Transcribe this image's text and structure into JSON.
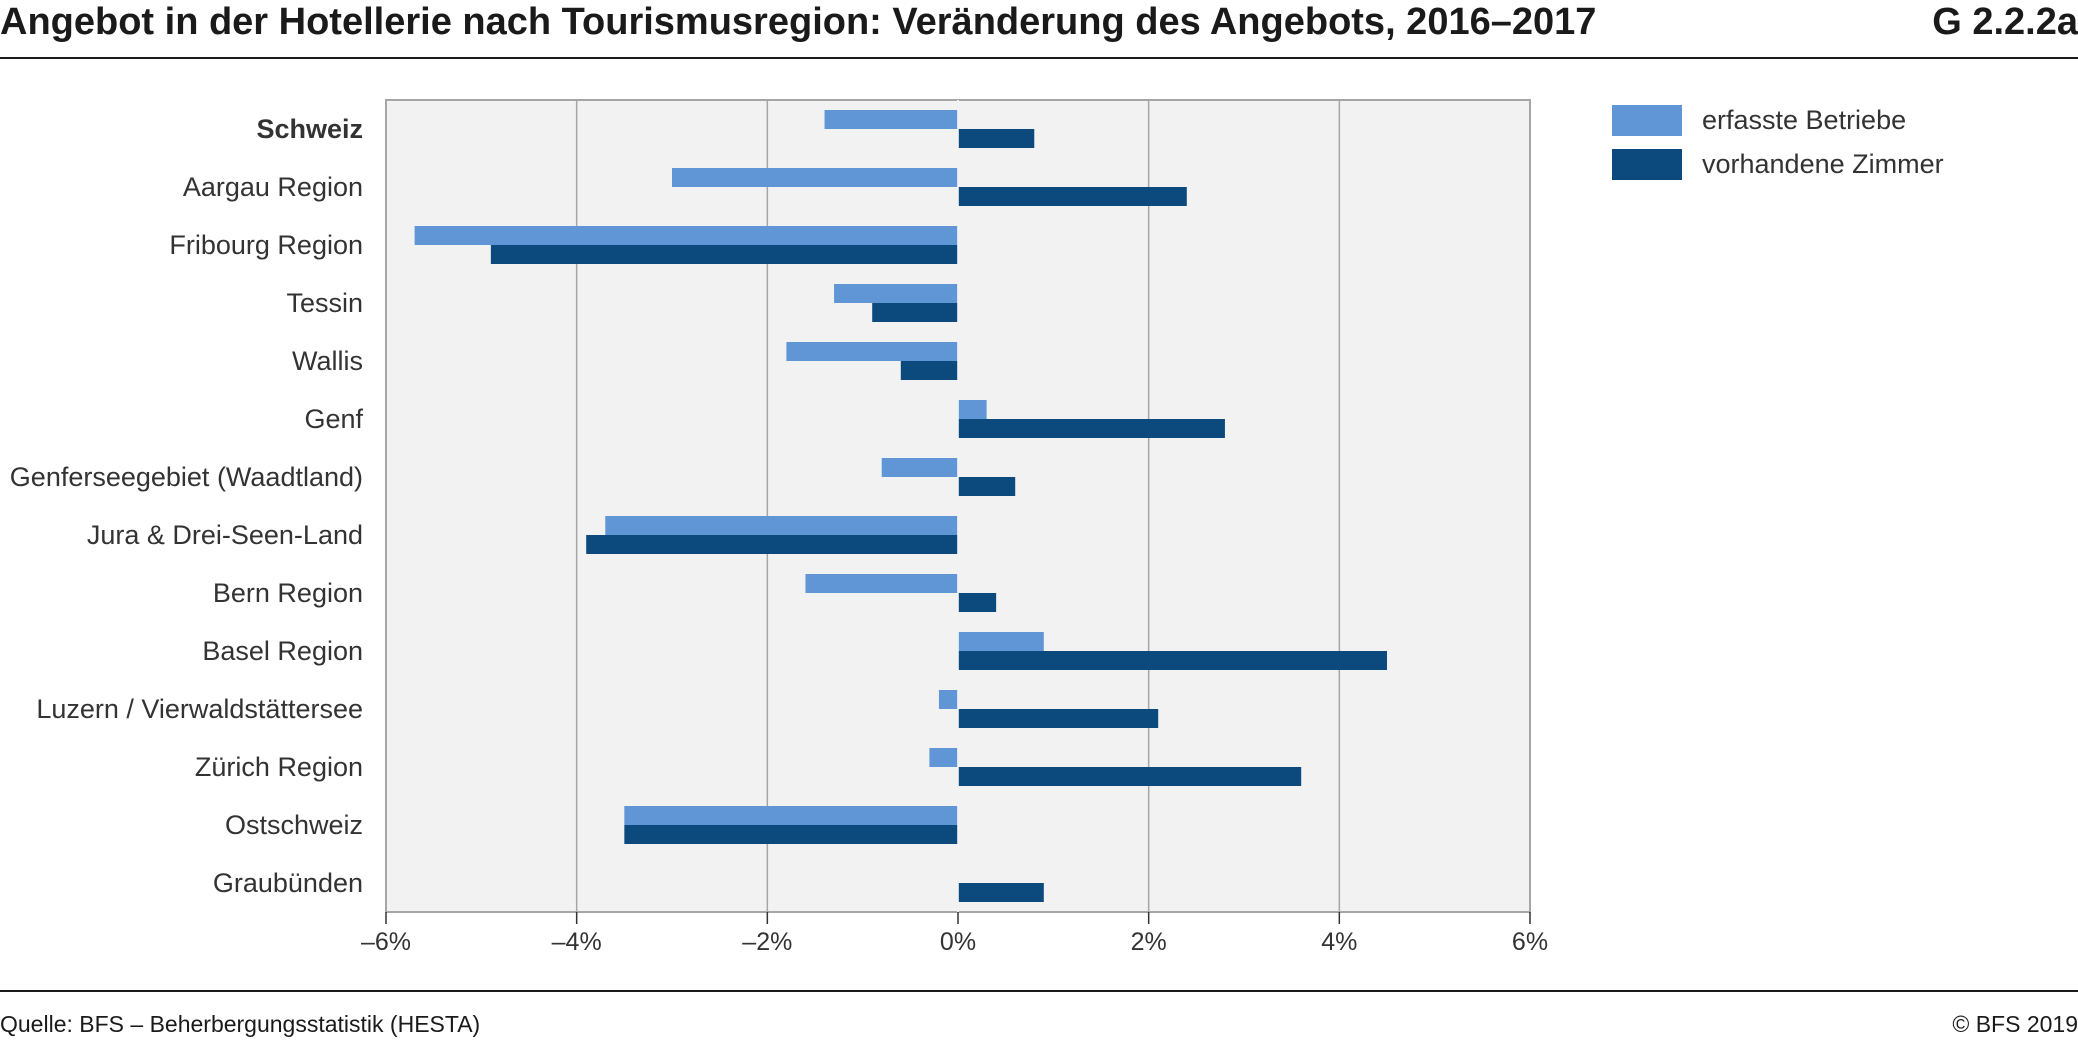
{
  "header": {
    "title": "Angebot in der Hotellerie nach Tourismusregion: Veränderung des Angebots, 2016–2017",
    "code": "G 2.2.2a"
  },
  "footer": {
    "source": "Quelle: BFS – Beherbergungsstatistik (HESTA)",
    "copyright": "© BFS 2019"
  },
  "colors": {
    "betriebe": "#6096d5",
    "zimmer": "#0c4a7d",
    "plot_bg": "#f2f2f2",
    "grid": "#a6a6a6"
  },
  "chart_data": {
    "type": "bar",
    "orientation": "horizontal",
    "title": "Angebot in der Hotellerie nach Tourismusregion: Veränderung des Angebots, 2016–2017",
    "xlabel": "",
    "ylabel": "",
    "xlim": [
      -6,
      6
    ],
    "grid": true,
    "legend_position": "top-right",
    "x_ticks": [
      -6,
      -4,
      -2,
      0,
      2,
      4,
      6
    ],
    "x_tick_labels": [
      "–6%",
      "–4%",
      "–2%",
      "0%",
      "2%",
      "4%",
      "6%"
    ],
    "categories": [
      "Schweiz",
      "Aargau Region",
      "Fribourg Region",
      "Tessin",
      "Wallis",
      "Genf",
      "Genferseegebiet (Waadtland)",
      "Jura & Drei-Seen-Land",
      "Bern Region",
      "Basel Region",
      "Luzern / Vierwaldstättersee",
      "Zürich Region",
      "Ostschweiz",
      "Graubünden"
    ],
    "bold_categories": [
      "Schweiz"
    ],
    "series": [
      {
        "name": "erfasste Betriebe",
        "color": "#6096d5",
        "values": [
          -1.4,
          -3.0,
          -5.7,
          -1.3,
          -1.8,
          0.3,
          -0.8,
          -3.7,
          -1.6,
          0.9,
          -0.2,
          -0.3,
          -3.5,
          0.0
        ]
      },
      {
        "name": "vorhandene Zimmer",
        "color": "#0c4a7d",
        "values": [
          0.8,
          2.4,
          -4.9,
          -0.9,
          -0.6,
          2.8,
          0.6,
          -3.9,
          0.4,
          4.5,
          2.1,
          3.6,
          -3.5,
          0.9
        ]
      }
    ]
  }
}
